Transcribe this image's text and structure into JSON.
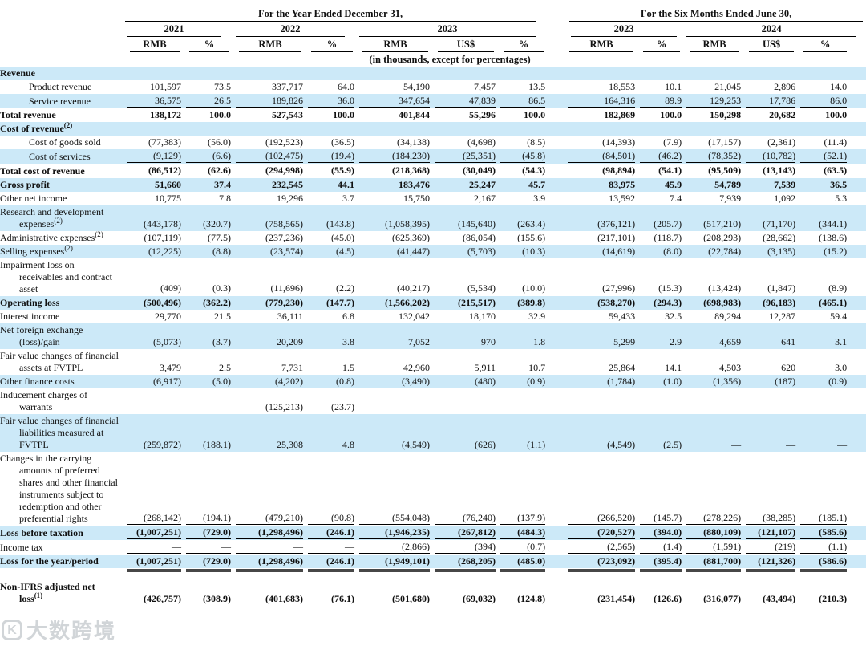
{
  "header": {
    "group_year": "For the Year Ended December 31,",
    "group_six_months": "For the Six Months Ended June 30,",
    "years": [
      "2021",
      "2022",
      "2023",
      "2023",
      "2024"
    ],
    "columns": [
      "RMB",
      "%",
      "RMB",
      "%",
      "RMB",
      "US$",
      "%",
      "RMB",
      "%",
      "RMB",
      "US$",
      "%"
    ],
    "note": "(in thousands, except for percentages)"
  },
  "colors": {
    "row_shade": "#cce9f8",
    "text": "#111111",
    "rule": "#000000",
    "total_bar": "#474747"
  },
  "watermark": {
    "logo": "K",
    "text": "大数跨境"
  },
  "rows": [
    {
      "label": "Revenue",
      "section": true,
      "shaded": true,
      "values": [
        "",
        "",
        "",
        "",
        "",
        "",
        "",
        "",
        "",
        "",
        "",
        ""
      ]
    },
    {
      "label": "Product revenue",
      "indent": true,
      "shaded": false,
      "values": [
        "101,597",
        "73.5",
        "337,717",
        "64.0",
        "54,190",
        "7,457",
        "13.5",
        "18,553",
        "10.1",
        "21,045",
        "2,896",
        "14.0"
      ]
    },
    {
      "label": "Service revenue",
      "indent": true,
      "shaded": true,
      "underline": "single",
      "values": [
        "36,575",
        "26.5",
        "189,826",
        "36.0",
        "347,654",
        "47,839",
        "86.5",
        "164,316",
        "89.9",
        "129,253",
        "17,786",
        "86.0"
      ]
    },
    {
      "label": "Total revenue",
      "bold": true,
      "shaded": false,
      "values": [
        "138,172",
        "100.0",
        "527,543",
        "100.0",
        "401,844",
        "55,296",
        "100.0",
        "182,869",
        "100.0",
        "150,298",
        "20,682",
        "100.0"
      ]
    },
    {
      "label": "Cost of revenue",
      "sup": "(2)",
      "section": true,
      "shaded": true,
      "values": [
        "",
        "",
        "",
        "",
        "",
        "",
        "",
        "",
        "",
        "",
        "",
        ""
      ]
    },
    {
      "label": "Cost of goods sold",
      "indent": true,
      "shaded": false,
      "values": [
        "(77,383)",
        "(56.0)",
        "(192,523)",
        "(36.5)",
        "(34,138)",
        "(4,698)",
        "(8.5)",
        "(14,393)",
        "(7.9)",
        "(17,157)",
        "(2,361)",
        "(11.4)"
      ]
    },
    {
      "label": "Cost of services",
      "indent": true,
      "shaded": true,
      "underline": "single",
      "values": [
        "(9,129)",
        "(6.6)",
        "(102,475)",
        "(19.4)",
        "(184,230)",
        "(25,351)",
        "(45.8)",
        "(84,501)",
        "(46.2)",
        "(78,352)",
        "(10,782)",
        "(52.1)"
      ]
    },
    {
      "label": "Total cost of revenue",
      "bold": true,
      "shaded": false,
      "underline": "single",
      "values": [
        "(86,512)",
        "(62.6)",
        "(294,998)",
        "(55.9)",
        "(218,368)",
        "(30,049)",
        "(54.3)",
        "(98,894)",
        "(54.1)",
        "(95,509)",
        "(13,143)",
        "(63.5)"
      ]
    },
    {
      "label": "Gross profit",
      "bold": true,
      "shaded": true,
      "values": [
        "51,660",
        "37.4",
        "232,545",
        "44.1",
        "183,476",
        "25,247",
        "45.7",
        "83,975",
        "45.9",
        "54,789",
        "7,539",
        "36.5"
      ]
    },
    {
      "label": "Other net income",
      "shaded": false,
      "values": [
        "10,775",
        "7.8",
        "19,296",
        "3.7",
        "15,750",
        "2,167",
        "3.9",
        "13,592",
        "7.4",
        "7,939",
        "1,092",
        "5.3"
      ]
    },
    {
      "label": "Research and development expenses",
      "sup": "(2)",
      "shaded": true,
      "values": [
        "(443,178)",
        "(320.7)",
        "(758,565)",
        "(143.8)",
        "(1,058,395)",
        "(145,640)",
        "(263.4)",
        "(376,121)",
        "(205.7)",
        "(517,210)",
        "(71,170)",
        "(344.1)"
      ]
    },
    {
      "label": "Administrative expenses",
      "sup": "(2)",
      "shaded": false,
      "values": [
        "(107,119)",
        "(77.5)",
        "(237,236)",
        "(45.0)",
        "(625,369)",
        "(86,054)",
        "(155.6)",
        "(217,101)",
        "(118.7)",
        "(208,293)",
        "(28,662)",
        "(138.6)"
      ]
    },
    {
      "label": "Selling expenses",
      "sup": "(2)",
      "shaded": true,
      "values": [
        "(12,225)",
        "(8.8)",
        "(23,574)",
        "(4.5)",
        "(41,447)",
        "(5,703)",
        "(10.3)",
        "(14,619)",
        "(8.0)",
        "(22,784)",
        "(3,135)",
        "(15.2)"
      ]
    },
    {
      "label": "Impairment loss on receivables and contract asset",
      "shaded": false,
      "underline": "single",
      "values": [
        "(409)",
        "(0.3)",
        "(11,696)",
        "(2.2)",
        "(40,217)",
        "(5,534)",
        "(10.0)",
        "(27,996)",
        "(15.3)",
        "(13,424)",
        "(1,847)",
        "(8.9)"
      ]
    },
    {
      "label": "Operating loss",
      "bold": true,
      "shaded": true,
      "values": [
        "(500,496)",
        "(362.2)",
        "(779,230)",
        "(147.7)",
        "(1,566,202)",
        "(215,517)",
        "(389.8)",
        "(538,270)",
        "(294.3)",
        "(698,983)",
        "(96,183)",
        "(465.1)"
      ]
    },
    {
      "label": "Interest income",
      "shaded": false,
      "values": [
        "29,770",
        "21.5",
        "36,111",
        "6.8",
        "132,042",
        "18,170",
        "32.9",
        "59,433",
        "32.5",
        "89,294",
        "12,287",
        "59.4"
      ]
    },
    {
      "label": "Net foreign exchange (loss)/gain",
      "shaded": true,
      "values": [
        "(5,073)",
        "(3.7)",
        "20,209",
        "3.8",
        "7,052",
        "970",
        "1.8",
        "5,299",
        "2.9",
        "4,659",
        "641",
        "3.1"
      ]
    },
    {
      "label": "Fair value changes of financial assets at FVTPL",
      "shaded": false,
      "values": [
        "3,479",
        "2.5",
        "7,731",
        "1.5",
        "42,960",
        "5,911",
        "10.7",
        "25,864",
        "14.1",
        "4,503",
        "620",
        "3.0"
      ]
    },
    {
      "label": "Other finance costs",
      "shaded": true,
      "values": [
        "(6,917)",
        "(5.0)",
        "(4,202)",
        "(0.8)",
        "(3,490)",
        "(480)",
        "(0.9)",
        "(1,784)",
        "(1.0)",
        "(1,356)",
        "(187)",
        "(0.9)"
      ]
    },
    {
      "label": "Inducement charges of warrants",
      "shaded": false,
      "values": [
        "—",
        "—",
        "(125,213)",
        "(23.7)",
        "—",
        "—",
        "—",
        "—",
        "—",
        "—",
        "—",
        "—"
      ]
    },
    {
      "label": "Fair value changes of financial liabilities measured at FVTPL",
      "shaded": true,
      "values": [
        "(259,872)",
        "(188.1)",
        "25,308",
        "4.8",
        "(4,549)",
        "(626)",
        "(1.1)",
        "(4,549)",
        "(2.5)",
        "—",
        "—",
        "—"
      ]
    },
    {
      "label": "Changes in the carrying amounts of preferred shares and other financial instruments subject to redemption and other preferential rights",
      "shaded": false,
      "underline": "single",
      "values": [
        "(268,142)",
        "(194.1)",
        "(479,210)",
        "(90.8)",
        "(554,048)",
        "(76,240)",
        "(137.9)",
        "(266,520)",
        "(145.7)",
        "(278,226)",
        "(38,285)",
        "(185.1)"
      ]
    },
    {
      "label": "Loss before taxation",
      "bold": true,
      "shaded": true,
      "underline": "single",
      "values": [
        "(1,007,251)",
        "(729.0)",
        "(1,298,496)",
        "(246.1)",
        "(1,946,235)",
        "(267,812)",
        "(484.3)",
        "(720,527)",
        "(394.0)",
        "(880,109)",
        "(121,107)",
        "(585.6)"
      ]
    },
    {
      "label": "Income tax",
      "shaded": false,
      "underline": "single",
      "values": [
        "—",
        "—",
        "—",
        "—",
        "(2,866)",
        "(394)",
        "(0.7)",
        "(2,565)",
        "(1.4)",
        "(1,591)",
        "(219)",
        "(1.1)"
      ]
    },
    {
      "label": "Loss for the year/period",
      "bold": true,
      "shaded": true,
      "underline": "double",
      "values": [
        "(1,007,251)",
        "(729.0)",
        "(1,298,496)",
        "(246.1)",
        "(1,949,101)",
        "(268,205)",
        "(485.0)",
        "(723,092)",
        "(395.4)",
        "(881,700)",
        "(121,326)",
        "(586.6)"
      ]
    },
    {
      "label": "Non-IFRS adjusted net loss",
      "sup": "(1)",
      "bold": true,
      "shaded": false,
      "values": [
        "(426,757)",
        "(308.9)",
        "(401,683)",
        "(76.1)",
        "(501,680)",
        "(69,032)",
        "(124.8)",
        "(231,454)",
        "(126.6)",
        "(316,077)",
        "(43,494)",
        "(210.3)"
      ]
    }
  ]
}
